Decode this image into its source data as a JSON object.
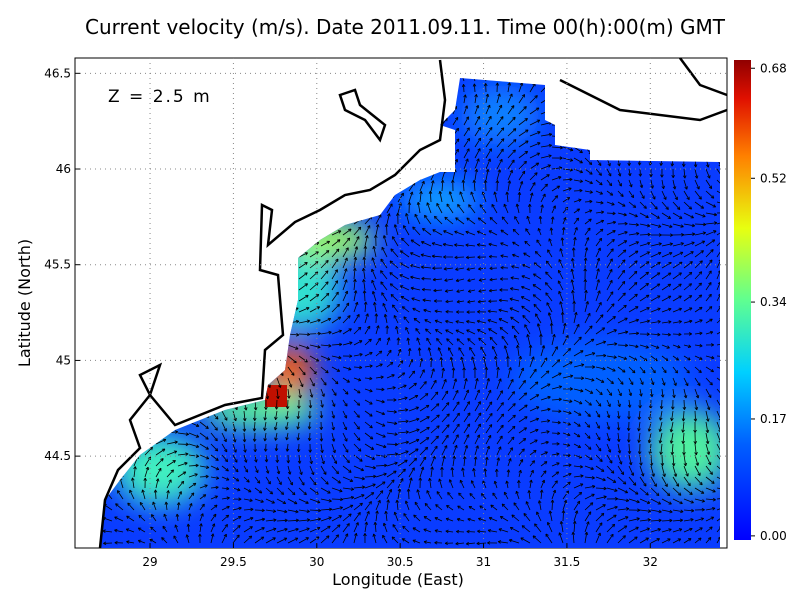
{
  "chart_data": {
    "type": "map",
    "title": "Current velocity (m/s). Date 2011.09.11. Time 00(h):00(m) GMT",
    "annotation": "Z = 2.5 m",
    "x_label": "Longitude (East)",
    "y_label": "Latitude (North)",
    "xlim": [
      28.55,
      32.46
    ],
    "ylim": [
      44.02,
      46.58
    ],
    "xticks": [
      29,
      29.5,
      30,
      30.5,
      31,
      31.5,
      32
    ],
    "yticks": [
      44.5,
      45,
      45.5,
      46,
      46.5
    ],
    "grid": true,
    "clim": [
      -0.006,
      0.692
    ],
    "cticks": [
      {
        "value": 0,
        "label": "0.00"
      },
      0.17,
      0.34,
      0.52,
      0.68
    ]
  }
}
